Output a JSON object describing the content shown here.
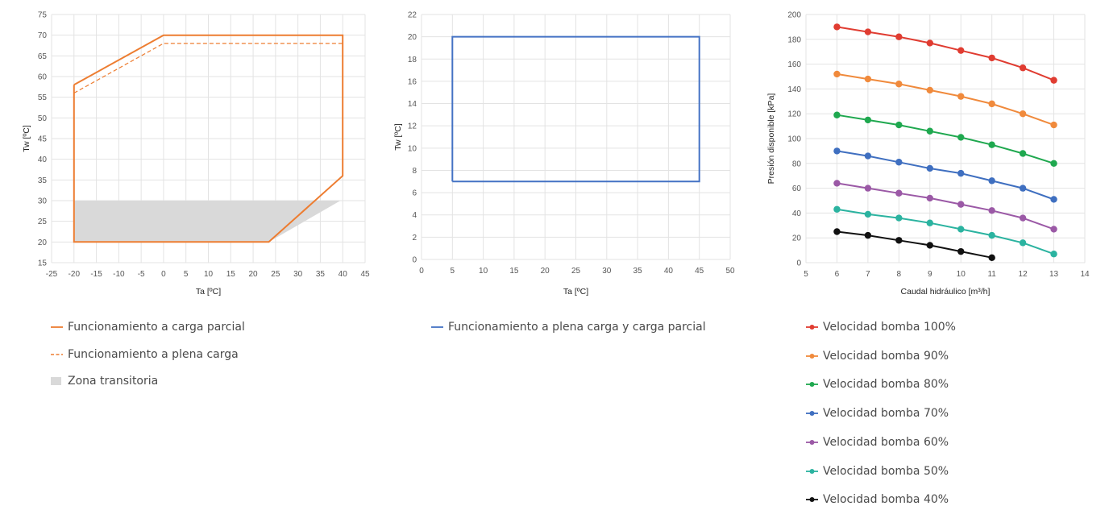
{
  "chart_data": [
    {
      "type": "line",
      "xlabel": "Ta [ºC]",
      "ylabel": "Tw [ºC]",
      "xlim": [
        -25,
        45
      ],
      "ylim": [
        15,
        75
      ],
      "xticks": [
        -25,
        -20,
        -15,
        -10,
        -5,
        0,
        5,
        10,
        15,
        20,
        25,
        30,
        35,
        40,
        45
      ],
      "yticks": [
        15,
        20,
        25,
        30,
        35,
        40,
        45,
        50,
        55,
        60,
        65,
        70,
        75
      ],
      "grid": true,
      "series": [
        {
          "name": "Funcionamiento a carga parcial",
          "style": "solid",
          "color": "#ED7D31",
          "x": [
            -20,
            0,
            40,
            40,
            23.5,
            -20,
            -20
          ],
          "y": [
            58,
            70,
            70,
            36,
            20,
            20,
            58
          ]
        },
        {
          "name": "Funcionamiento a plena carga",
          "style": "dashed",
          "color": "#ED7D31",
          "x": [
            -20,
            0,
            40
          ],
          "y": [
            56,
            68,
            68
          ]
        },
        {
          "name": "Zona transitoria",
          "style": "fill",
          "color": "#D9D9D9",
          "x": [
            -20,
            30,
            39.5,
            23.5,
            -20
          ],
          "y": [
            30,
            30,
            30,
            20,
            20
          ]
        }
      ]
    },
    {
      "type": "line",
      "xlabel": "Ta [ºC]",
      "ylabel": "Tw [ºC]",
      "xlim": [
        0,
        50
      ],
      "ylim": [
        0,
        22
      ],
      "xticks": [
        0,
        5,
        10,
        15,
        20,
        25,
        30,
        35,
        40,
        45,
        50
      ],
      "yticks": [
        0,
        2,
        4,
        6,
        8,
        10,
        12,
        14,
        16,
        18,
        20,
        22
      ],
      "grid": true,
      "series": [
        {
          "name": "Funcionamiento a plena carga y carga parcial",
          "style": "solid",
          "color": "#4472C4",
          "x": [
            5,
            45,
            45,
            5,
            5
          ],
          "y": [
            7,
            7,
            20,
            20,
            7
          ]
        }
      ]
    },
    {
      "type": "line",
      "xlabel": "Caudal hidráulico [m³/h]",
      "ylabel": "Presión disponible [kPa]",
      "xlim": [
        5,
        14
      ],
      "ylim": [
        0,
        200
      ],
      "xticks": [
        5,
        6,
        7,
        8,
        9,
        10,
        11,
        12,
        13,
        14
      ],
      "yticks": [
        0,
        20,
        40,
        60,
        80,
        100,
        120,
        140,
        160,
        180,
        200
      ],
      "grid": true,
      "legend": "bottom",
      "series": [
        {
          "name": "Velocidad bomba 100%",
          "color": "#E03C31",
          "x": [
            6,
            7,
            8,
            9,
            10,
            11,
            12,
            13
          ],
          "values": [
            190,
            186,
            182,
            177,
            171,
            165,
            157,
            147
          ]
        },
        {
          "name": "Velocidad bomba 90%",
          "color": "#F08A3C",
          "x": [
            6,
            7,
            8,
            9,
            10,
            11,
            12,
            13
          ],
          "values": [
            152,
            148,
            144,
            139,
            134,
            128,
            120,
            111
          ]
        },
        {
          "name": "Velocidad bomba 80%",
          "color": "#1FA84F",
          "x": [
            6,
            7,
            8,
            9,
            10,
            11,
            12,
            13
          ],
          "values": [
            119,
            115,
            111,
            106,
            101,
            95,
            88,
            80
          ]
        },
        {
          "name": "Velocidad bomba 70%",
          "color": "#3F6FC0",
          "x": [
            6,
            7,
            8,
            9,
            10,
            11,
            12,
            13
          ],
          "values": [
            90,
            86,
            81,
            76,
            72,
            66,
            60,
            51
          ]
        },
        {
          "name": "Velocidad bomba 60%",
          "color": "#9B59A6",
          "x": [
            6,
            7,
            8,
            9,
            10,
            11,
            12,
            13
          ],
          "values": [
            64,
            60,
            56,
            52,
            47,
            42,
            36,
            27
          ]
        },
        {
          "name": "Velocidad bomba 50%",
          "color": "#2BB3A0",
          "x": [
            6,
            7,
            8,
            9,
            10,
            11,
            12,
            13
          ],
          "values": [
            43,
            39,
            36,
            32,
            27,
            22,
            16,
            7
          ]
        },
        {
          "name": "Velocidad bomba 40%",
          "color": "#111111",
          "x": [
            6,
            7,
            8,
            9,
            10,
            11
          ],
          "values": [
            25,
            22,
            18,
            14,
            9,
            4
          ]
        }
      ]
    }
  ]
}
